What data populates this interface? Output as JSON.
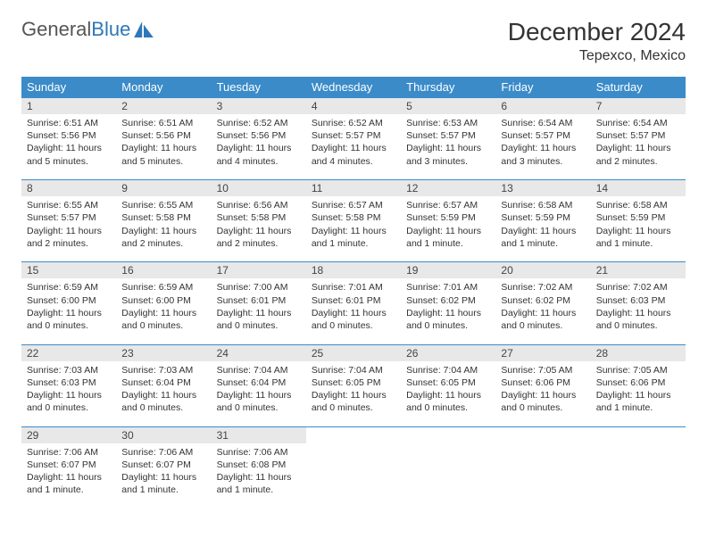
{
  "logo": {
    "text_gray": "General",
    "text_blue": "Blue"
  },
  "title": "December 2024",
  "location": "Tepexco, Mexico",
  "colors": {
    "header_bg": "#3b8bc9",
    "header_fg": "#ffffff",
    "daynum_bg": "#e8e8e8",
    "rule": "#3b8bc9",
    "logo_blue": "#2e77b8"
  },
  "day_headers": [
    "Sunday",
    "Monday",
    "Tuesday",
    "Wednesday",
    "Thursday",
    "Friday",
    "Saturday"
  ],
  "weeks": [
    [
      {
        "n": "1",
        "sr": "6:51 AM",
        "ss": "5:56 PM",
        "dl": "11 hours and 5 minutes."
      },
      {
        "n": "2",
        "sr": "6:51 AM",
        "ss": "5:56 PM",
        "dl": "11 hours and 5 minutes."
      },
      {
        "n": "3",
        "sr": "6:52 AM",
        "ss": "5:56 PM",
        "dl": "11 hours and 4 minutes."
      },
      {
        "n": "4",
        "sr": "6:52 AM",
        "ss": "5:57 PM",
        "dl": "11 hours and 4 minutes."
      },
      {
        "n": "5",
        "sr": "6:53 AM",
        "ss": "5:57 PM",
        "dl": "11 hours and 3 minutes."
      },
      {
        "n": "6",
        "sr": "6:54 AM",
        "ss": "5:57 PM",
        "dl": "11 hours and 3 minutes."
      },
      {
        "n": "7",
        "sr": "6:54 AM",
        "ss": "5:57 PM",
        "dl": "11 hours and 2 minutes."
      }
    ],
    [
      {
        "n": "8",
        "sr": "6:55 AM",
        "ss": "5:57 PM",
        "dl": "11 hours and 2 minutes."
      },
      {
        "n": "9",
        "sr": "6:55 AM",
        "ss": "5:58 PM",
        "dl": "11 hours and 2 minutes."
      },
      {
        "n": "10",
        "sr": "6:56 AM",
        "ss": "5:58 PM",
        "dl": "11 hours and 2 minutes."
      },
      {
        "n": "11",
        "sr": "6:57 AM",
        "ss": "5:58 PM",
        "dl": "11 hours and 1 minute."
      },
      {
        "n": "12",
        "sr": "6:57 AM",
        "ss": "5:59 PM",
        "dl": "11 hours and 1 minute."
      },
      {
        "n": "13",
        "sr": "6:58 AM",
        "ss": "5:59 PM",
        "dl": "11 hours and 1 minute."
      },
      {
        "n": "14",
        "sr": "6:58 AM",
        "ss": "5:59 PM",
        "dl": "11 hours and 1 minute."
      }
    ],
    [
      {
        "n": "15",
        "sr": "6:59 AM",
        "ss": "6:00 PM",
        "dl": "11 hours and 0 minutes."
      },
      {
        "n": "16",
        "sr": "6:59 AM",
        "ss": "6:00 PM",
        "dl": "11 hours and 0 minutes."
      },
      {
        "n": "17",
        "sr": "7:00 AM",
        "ss": "6:01 PM",
        "dl": "11 hours and 0 minutes."
      },
      {
        "n": "18",
        "sr": "7:01 AM",
        "ss": "6:01 PM",
        "dl": "11 hours and 0 minutes."
      },
      {
        "n": "19",
        "sr": "7:01 AM",
        "ss": "6:02 PM",
        "dl": "11 hours and 0 minutes."
      },
      {
        "n": "20",
        "sr": "7:02 AM",
        "ss": "6:02 PM",
        "dl": "11 hours and 0 minutes."
      },
      {
        "n": "21",
        "sr": "7:02 AM",
        "ss": "6:03 PM",
        "dl": "11 hours and 0 minutes."
      }
    ],
    [
      {
        "n": "22",
        "sr": "7:03 AM",
        "ss": "6:03 PM",
        "dl": "11 hours and 0 minutes."
      },
      {
        "n": "23",
        "sr": "7:03 AM",
        "ss": "6:04 PM",
        "dl": "11 hours and 0 minutes."
      },
      {
        "n": "24",
        "sr": "7:04 AM",
        "ss": "6:04 PM",
        "dl": "11 hours and 0 minutes."
      },
      {
        "n": "25",
        "sr": "7:04 AM",
        "ss": "6:05 PM",
        "dl": "11 hours and 0 minutes."
      },
      {
        "n": "26",
        "sr": "7:04 AM",
        "ss": "6:05 PM",
        "dl": "11 hours and 0 minutes."
      },
      {
        "n": "27",
        "sr": "7:05 AM",
        "ss": "6:06 PM",
        "dl": "11 hours and 0 minutes."
      },
      {
        "n": "28",
        "sr": "7:05 AM",
        "ss": "6:06 PM",
        "dl": "11 hours and 1 minute."
      }
    ],
    [
      {
        "n": "29",
        "sr": "7:06 AM",
        "ss": "6:07 PM",
        "dl": "11 hours and 1 minute."
      },
      {
        "n": "30",
        "sr": "7:06 AM",
        "ss": "6:07 PM",
        "dl": "11 hours and 1 minute."
      },
      {
        "n": "31",
        "sr": "7:06 AM",
        "ss": "6:08 PM",
        "dl": "11 hours and 1 minute."
      },
      null,
      null,
      null,
      null
    ]
  ],
  "labels": {
    "sunrise": "Sunrise:",
    "sunset": "Sunset:",
    "daylight": "Daylight:"
  }
}
